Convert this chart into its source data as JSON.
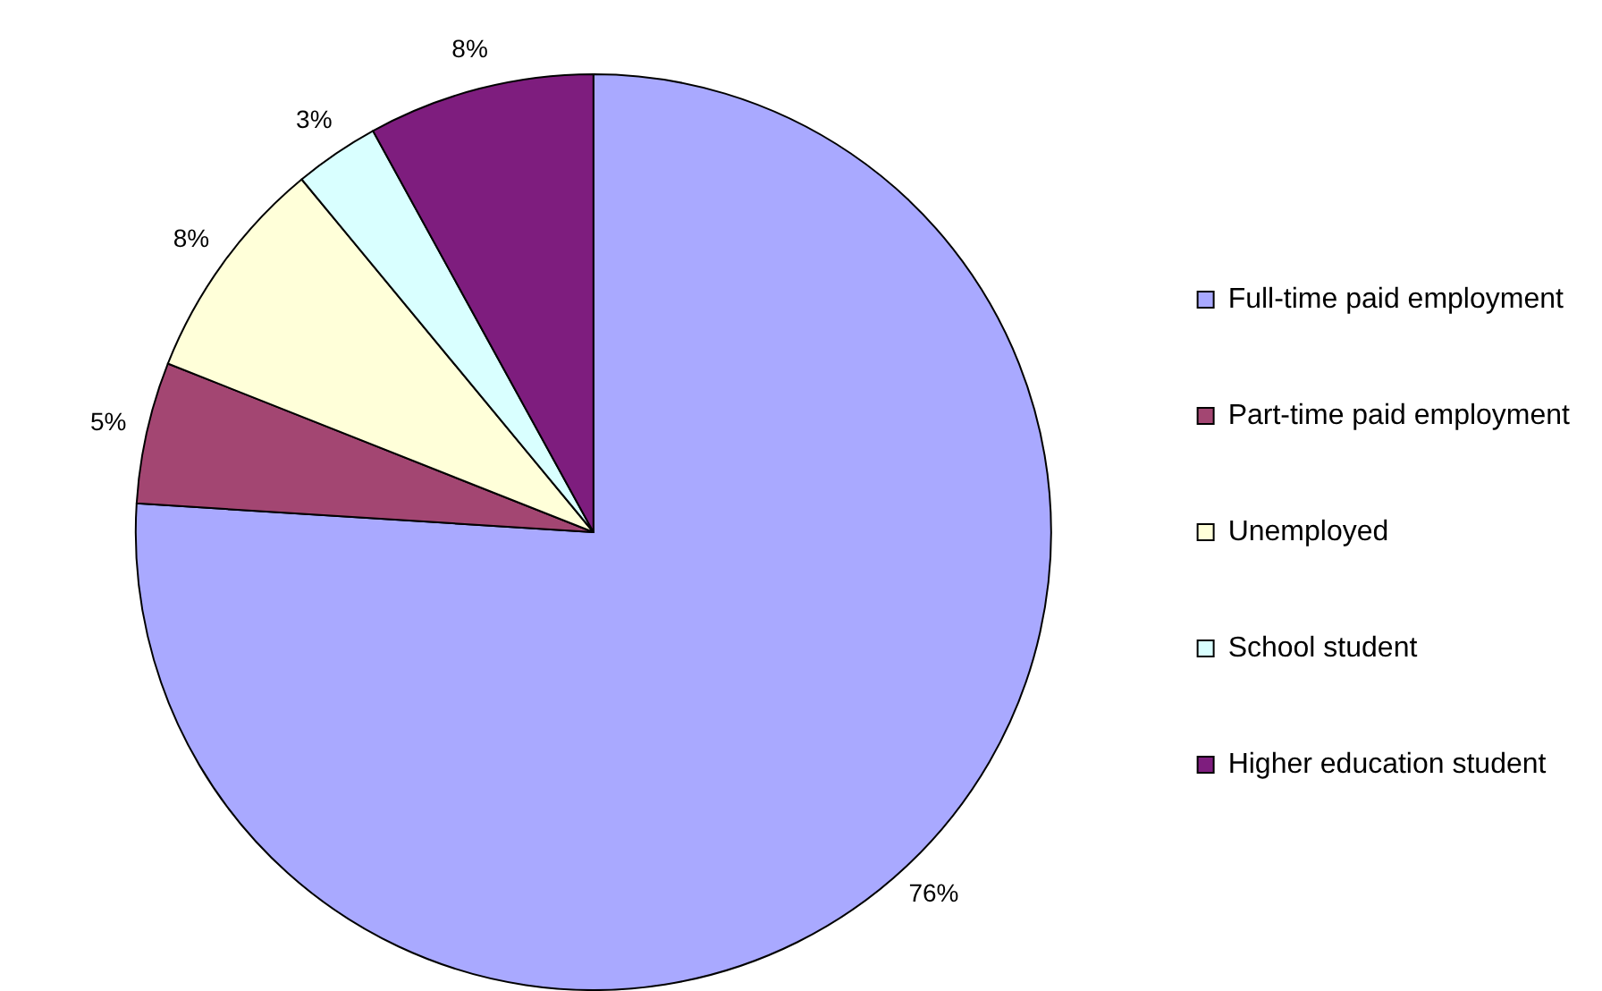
{
  "chart_data": {
    "type": "pie",
    "categories": [
      "Full-time paid employment",
      "Part-time paid employment",
      "Unemployed",
      "School student",
      "Higher education student"
    ],
    "values": [
      76,
      5,
      8,
      3,
      8
    ],
    "colors": [
      "#a9a9ff",
      "#a34672",
      "#ffffd9",
      "#d9ffff",
      "#7e1d7e"
    ],
    "value_labels": [
      "76%",
      "5%",
      "8%",
      "3%",
      "8%"
    ],
    "legend": "right"
  }
}
